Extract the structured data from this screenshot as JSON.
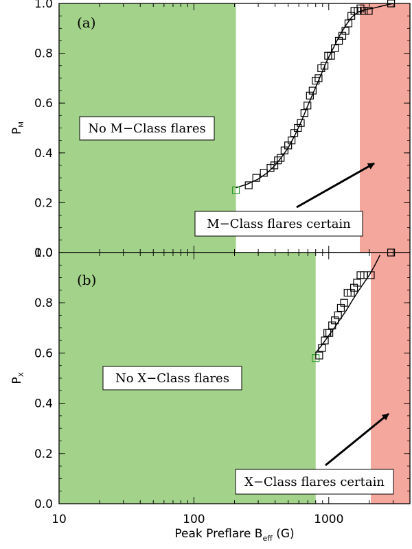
{
  "colors": {
    "no_flare_zone": "#a3d28a",
    "certain_zone": "#f4a79c",
    "marker": "#000000",
    "first_marker": "#2e9a2e",
    "fit_line": "#000000"
  },
  "chart_data": [
    {
      "type": "scatter",
      "panel_label": "(a)",
      "ylabel_main": "P",
      "ylabel_sub": "M",
      "xlim": [
        10,
        4000
      ],
      "ylim": [
        0.0,
        1.0
      ],
      "x_scale": "log",
      "x_ticks": [
        {
          "value": 10,
          "label": "10"
        },
        {
          "value": 100,
          "label": "100"
        },
        {
          "value": 1000,
          "label": "1000"
        }
      ],
      "y_ticks": [
        {
          "value": 0.0,
          "label": "0.0"
        },
        {
          "value": 0.2,
          "label": "0.2"
        },
        {
          "value": 0.4,
          "label": "0.4"
        },
        {
          "value": 0.6,
          "label": "0.6"
        },
        {
          "value": 0.8,
          "label": "0.8"
        },
        {
          "value": 1.0,
          "label": "1.0"
        }
      ],
      "no_flare_zone": [
        10,
        205
      ],
      "certain_zone": [
        1700,
        4000
      ],
      "no_flare_text": "No M−Class flares",
      "certain_text": "M−Class flares certain",
      "points": {
        "x": [
          205,
          255,
          290,
          330,
          370,
          395,
          420,
          440,
          470,
          500,
          530,
          555,
          590,
          620,
          660,
          695,
          725,
          760,
          800,
          840,
          880,
          930,
          990,
          1040,
          1110,
          1190,
          1260,
          1330,
          1400,
          1470,
          1550,
          1640,
          1720,
          1820,
          1980,
          2900
        ],
        "y": [
          0.25,
          0.27,
          0.3,
          0.32,
          0.34,
          0.35,
          0.37,
          0.38,
          0.41,
          0.43,
          0.45,
          0.48,
          0.5,
          0.52,
          0.56,
          0.59,
          0.63,
          0.65,
          0.69,
          0.7,
          0.74,
          0.75,
          0.79,
          0.79,
          0.82,
          0.85,
          0.87,
          0.89,
          0.92,
          0.95,
          0.97,
          0.97,
          0.98,
          0.97,
          0.97,
          1.0
        ]
      },
      "fit": {
        "x": [
          205,
          250,
          300,
          350,
          400,
          450,
          500,
          560,
          630,
          700,
          780,
          870,
          970,
          1080,
          1200,
          1330,
          1480,
          1650,
          1850,
          2100,
          2500,
          3000
        ],
        "y": [
          0.26,
          0.275,
          0.295,
          0.32,
          0.35,
          0.385,
          0.42,
          0.47,
          0.53,
          0.59,
          0.65,
          0.71,
          0.77,
          0.82,
          0.87,
          0.91,
          0.945,
          0.965,
          0.975,
          0.98,
          0.99,
          1.0
        ]
      }
    },
    {
      "type": "scatter",
      "panel_label": "(b)",
      "ylabel_main": "P",
      "ylabel_sub": "X",
      "xlabel_main": "Peak Preflare B",
      "xlabel_sub": "eff",
      "xlabel_unit": " (G)",
      "xlim": [
        10,
        4000
      ],
      "ylim": [
        0.0,
        1.0
      ],
      "x_scale": "log",
      "x_ticks": [
        {
          "value": 10,
          "label": "10"
        },
        {
          "value": 100,
          "label": "100"
        },
        {
          "value": 1000,
          "label": "1000"
        }
      ],
      "y_ticks": [
        {
          "value": 0.0,
          "label": "0.0"
        },
        {
          "value": 0.2,
          "label": "0.2"
        },
        {
          "value": 0.4,
          "label": "0.4"
        },
        {
          "value": 0.6,
          "label": "0.6"
        },
        {
          "value": 0.8,
          "label": "0.8"
        },
        {
          "value": 1.0,
          "label": "1.0"
        }
      ],
      "no_flare_zone": [
        10,
        800
      ],
      "certain_zone": [
        2050,
        4000
      ],
      "no_flare_text": "No X−Class flares",
      "certain_text": "X−Class flares certain",
      "points": {
        "x": [
          800,
          850,
          890,
          935,
          975,
          1010,
          1060,
          1110,
          1170,
          1230,
          1300,
          1380,
          1460,
          1540,
          1620,
          1720,
          1830,
          2050,
          2900
        ],
        "y": [
          0.58,
          0.59,
          0.62,
          0.65,
          0.68,
          0.68,
          0.71,
          0.73,
          0.75,
          0.78,
          0.8,
          0.84,
          0.84,
          0.86,
          0.88,
          0.91,
          0.91,
          0.91,
          1.0
        ]
      },
      "fit": {
        "x": [
          800,
          900,
          1000,
          1100,
          1200,
          1350,
          1500,
          1650,
          1800,
          2000,
          2200,
          2400
        ],
        "y": [
          0.6,
          0.635,
          0.67,
          0.7,
          0.73,
          0.77,
          0.81,
          0.845,
          0.875,
          0.91,
          0.95,
          0.99
        ]
      }
    }
  ]
}
